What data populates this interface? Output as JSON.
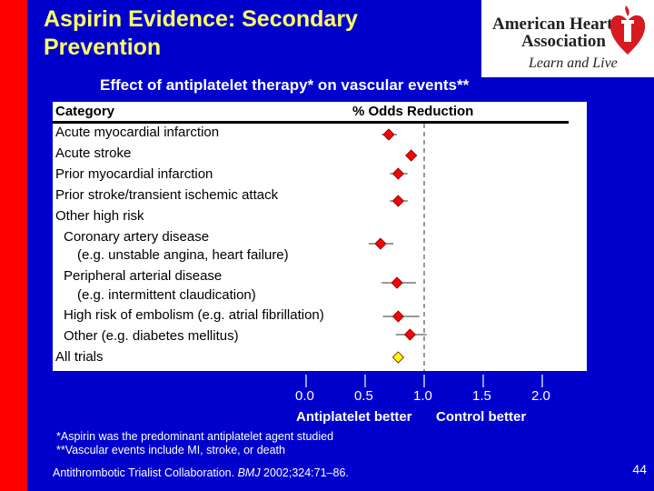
{
  "slide": {
    "title_line1": "Aspirin Evidence: Secondary",
    "title_line2": "Prevention",
    "subtitle": "Effect of antiplatelet therapy* on vascular events**",
    "page_number": "44",
    "colors": {
      "background": "#0000cc",
      "accent": "#ff0000",
      "title": "#ffff66",
      "marker": "#ff0000",
      "all_trials_marker": "#ffff00"
    }
  },
  "logo": {
    "line1": "American Heart",
    "line2": "Association",
    "tagline": "Learn and Live",
    "icon": "heart-torch-icon"
  },
  "table": {
    "col_category": "Category",
    "col_reduction": "% Odds Reduction"
  },
  "categories": [
    {
      "label": "Acute myocardial infarction"
    },
    {
      "label": "Acute stroke"
    },
    {
      "label": "Prior myocardial infarction"
    },
    {
      "label": "Prior stroke/transient ischemic attack"
    },
    {
      "label": "Other high risk"
    },
    {
      "label": "Coronary artery disease"
    },
    {
      "label": "(e.g. unstable angina, heart failure)"
    },
    {
      "label": "Peripheral arterial disease"
    },
    {
      "label": "(e.g. intermittent claudication)"
    },
    {
      "label": "High risk of embolism (e.g. atrial fibrillation)"
    },
    {
      "label": "Other (e.g. diabetes mellitus)"
    },
    {
      "label": "All trials"
    }
  ],
  "axis": {
    "ticks": [
      "0.0",
      "0.5",
      "1.0",
      "1.5",
      "2.0"
    ],
    "left_caption": "Antiplatelet better",
    "right_caption": "Control better"
  },
  "footnotes": {
    "note1": "*Aspirin was the predominant antiplatelet agent studied",
    "note2": "**Vascular events include MI, stroke, or death",
    "citation_pre": "Antithrombotic Trialist Collaboration. ",
    "citation_journal": "BMJ",
    "citation_post": " 2002;324:71–86."
  },
  "chart_data": {
    "type": "scatter",
    "title": "Effect of antiplatelet therapy* on vascular events**",
    "xlabel": "",
    "ylabel": "",
    "xlim": [
      0.0,
      2.0
    ],
    "x_ticks": [
      0.0,
      0.5,
      1.0,
      1.5,
      2.0
    ],
    "reference_line": 1.0,
    "reference_line_style": "dashed",
    "grid": false,
    "categories": [
      "Acute myocardial infarction",
      "Acute stroke",
      "Prior myocardial infarction",
      "Prior stroke/transient ischemic attack",
      "Coronary artery disease (e.g. unstable angina, heart failure)",
      "Peripheral arterial disease (e.g. intermittent claudication)",
      "High risk of embolism (e.g. atrial fibrillation)",
      "Other (e.g. diabetes mellitus)",
      "All trials"
    ],
    "series": [
      {
        "odds_ratio": [
          0.7,
          0.89,
          0.78,
          0.78,
          0.63,
          0.77,
          0.78,
          0.88,
          0.78
        ],
        "ci_low": [
          0.64,
          0.85,
          0.71,
          0.71,
          0.53,
          0.64,
          0.65,
          0.76,
          0.74
        ],
        "ci_high": [
          0.77,
          0.94,
          0.86,
          0.86,
          0.74,
          0.93,
          0.96,
          1.02,
          0.82
        ]
      }
    ]
  }
}
